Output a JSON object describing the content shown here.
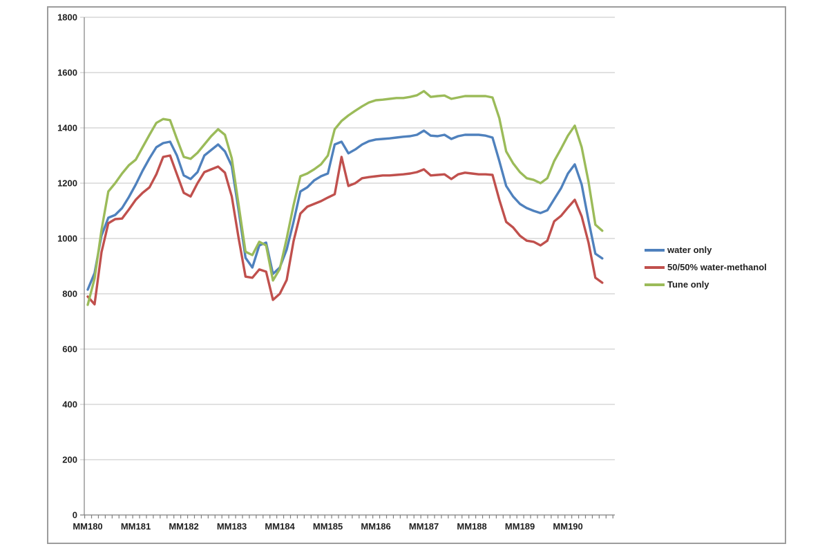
{
  "chart_data": {
    "type": "line",
    "title": "",
    "grid": true,
    "legend_position": "right",
    "x_axis": {
      "categories": [
        "MM180",
        "MM181",
        "MM182",
        "MM183",
        "MM184",
        "MM185",
        "MM186",
        "MM187",
        "MM188",
        "MM189",
        "MM190"
      ],
      "points_per_category": 7
    },
    "y_axis": {
      "min": 0,
      "max": 1800,
      "tick_step": 200,
      "tick_labels": [
        "0",
        "200",
        "400",
        "600",
        "800",
        "1000",
        "1200",
        "1400",
        "1600",
        "1800"
      ]
    },
    "series": [
      {
        "name": "water only",
        "color": "#4F81BD",
        "values": [
          815,
          875,
          1010,
          1075,
          1085,
          1110,
          1150,
          1195,
          1245,
          1290,
          1330,
          1345,
          1350,
          1300,
          1228,
          1215,
          1240,
          1300,
          1320,
          1340,
          1315,
          1262,
          1100,
          930,
          895,
          975,
          985,
          872,
          895,
          960,
          1060,
          1170,
          1185,
          1210,
          1225,
          1235,
          1340,
          1350,
          1308,
          1322,
          1340,
          1352,
          1358,
          1360,
          1362,
          1365,
          1368,
          1370,
          1375,
          1390,
          1372,
          1370,
          1375,
          1360,
          1370,
          1375,
          1375,
          1375,
          1372,
          1365,
          1280,
          1190,
          1152,
          1125,
          1110,
          1100,
          1092,
          1102,
          1142,
          1182,
          1235,
          1268,
          1195,
          1065,
          945,
          928
        ]
      },
      {
        "name": "50/50% water-methanol",
        "color": "#C0504D",
        "values": [
          790,
          762,
          950,
          1055,
          1070,
          1072,
          1105,
          1140,
          1165,
          1185,
          1232,
          1295,
          1300,
          1232,
          1165,
          1152,
          1200,
          1240,
          1250,
          1260,
          1238,
          1152,
          1000,
          862,
          858,
          888,
          880,
          778,
          800,
          850,
          990,
          1090,
          1115,
          1125,
          1135,
          1148,
          1160,
          1295,
          1190,
          1200,
          1218,
          1222,
          1225,
          1228,
          1228,
          1230,
          1232,
          1235,
          1240,
          1250,
          1228,
          1230,
          1232,
          1215,
          1232,
          1238,
          1235,
          1232,
          1232,
          1230,
          1140,
          1060,
          1040,
          1010,
          992,
          988,
          975,
          992,
          1062,
          1082,
          1112,
          1140,
          1080,
          985,
          858,
          840
        ]
      },
      {
        "name": "Tune only",
        "color": "#9BBB59",
        "values": [
          760,
          855,
          1030,
          1170,
          1200,
          1235,
          1265,
          1285,
          1330,
          1375,
          1418,
          1432,
          1428,
          1360,
          1295,
          1288,
          1310,
          1340,
          1370,
          1395,
          1375,
          1290,
          1120,
          952,
          940,
          988,
          975,
          848,
          890,
          1000,
          1120,
          1225,
          1235,
          1250,
          1268,
          1300,
          1395,
          1425,
          1445,
          1462,
          1478,
          1492,
          1500,
          1502,
          1505,
          1508,
          1508,
          1512,
          1518,
          1533,
          1512,
          1515,
          1517,
          1505,
          1510,
          1515,
          1515,
          1515,
          1515,
          1510,
          1435,
          1315,
          1272,
          1240,
          1218,
          1212,
          1200,
          1218,
          1280,
          1325,
          1372,
          1408,
          1330,
          1205,
          1050,
          1028
        ]
      }
    ]
  }
}
